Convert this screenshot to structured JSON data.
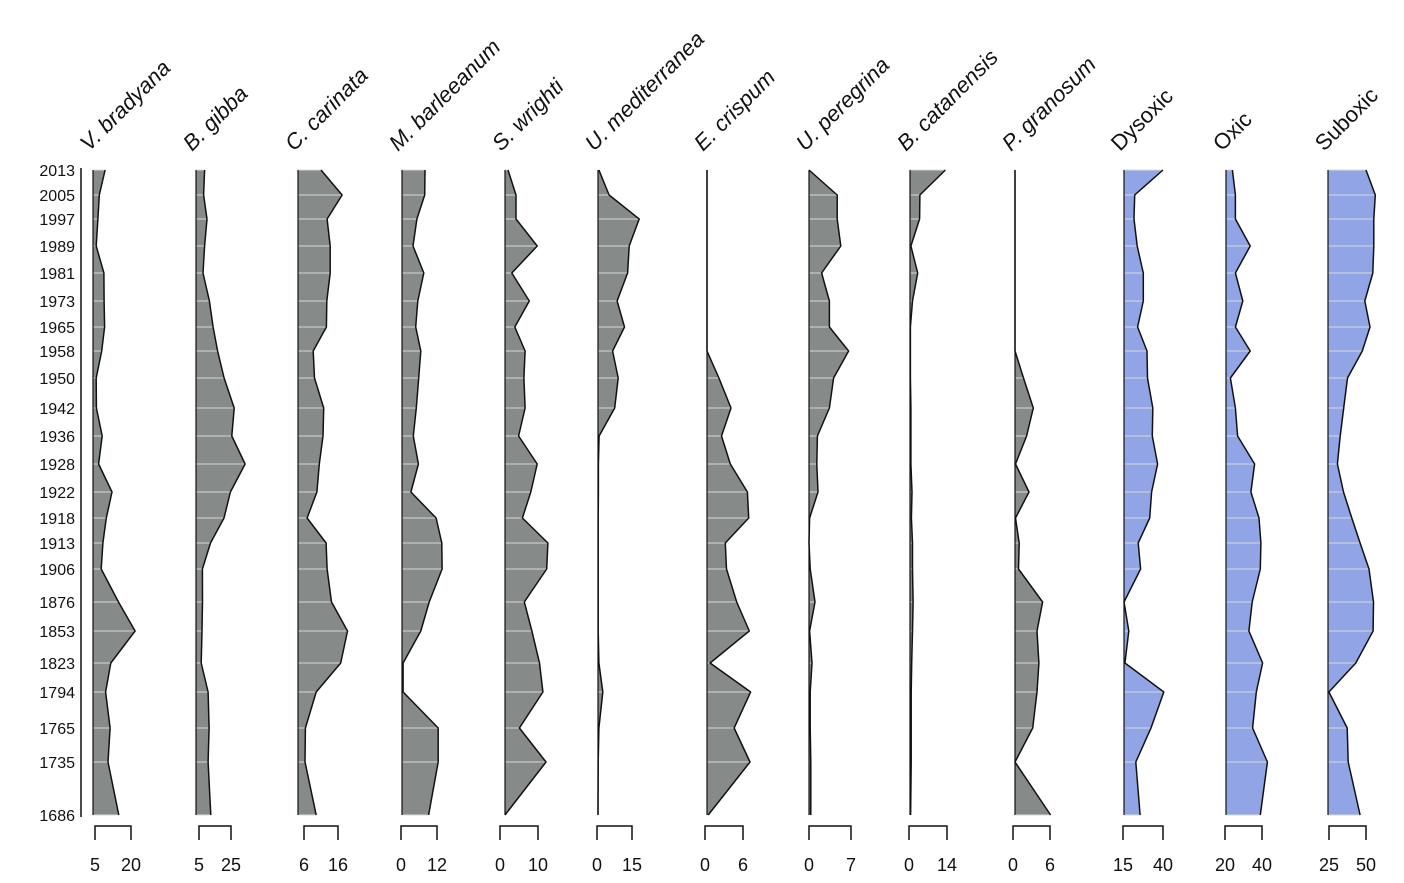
{
  "chart_data": {
    "type": "area",
    "years": [
      "2013",
      "2005",
      "1997",
      "1989",
      "1981",
      "1973",
      "1965",
      "1958",
      "1950",
      "1942",
      "1936",
      "1928",
      "1922",
      "1918",
      "1913",
      "1906",
      "1876",
      "1853",
      "1823",
      "1794",
      "1765",
      "1735",
      "1686"
    ],
    "colors": {
      "species": "#868a88",
      "oxygen": "#91a5e6"
    },
    "panels": [
      {
        "name": "V. bradyana",
        "italic": true,
        "kind": "species",
        "range": [
          5,
          20
        ],
        "ticks": [
          "5",
          "20"
        ],
        "values": [
          9.2,
          6.8,
          6.2,
          5.5,
          8.7,
          8.8,
          9.0,
          7.8,
          5.5,
          5.6,
          8.0,
          6.5,
          12.1,
          9.7,
          8.3,
          7.6,
          14.8,
          21.7,
          11.6,
          9.4,
          11.3,
          10.4,
          14.9
        ]
      },
      {
        "name": "B. gibba",
        "italic": true,
        "kind": "species",
        "range": [
          5,
          25
        ],
        "ticks": [
          "5",
          "25"
        ],
        "values": [
          8.5,
          7.9,
          10.0,
          8.5,
          7.5,
          11.5,
          13.8,
          16.6,
          20.7,
          27.0,
          25.5,
          33.8,
          24.6,
          20.6,
          12.2,
          7.1,
          7.2,
          6.9,
          6.4,
          10.7,
          11.3,
          10.7,
          12.4
        ]
      },
      {
        "name": "C. carinata",
        "italic": true,
        "kind": "species",
        "range": [
          6,
          16
        ],
        "ticks": [
          "6",
          "16"
        ],
        "values": [
          11.0,
          17.2,
          12.8,
          13.7,
          13.7,
          12.7,
          12.6,
          8.7,
          9.1,
          11.8,
          11.6,
          10.5,
          9.8,
          6.9,
          12.5,
          12.8,
          14.1,
          18.8,
          16.8,
          9.6,
          6.4,
          6.3,
          9.6
        ]
      },
      {
        "name": "M. barleeanum",
        "italic": true,
        "kind": "species",
        "range": [
          0,
          12
        ],
        "ticks": [
          "0",
          "12"
        ],
        "values": [
          8.0,
          7.9,
          5.3,
          4.0,
          7.6,
          5.6,
          4.9,
          6.6,
          5.9,
          5.1,
          4.1,
          5.8,
          3.3,
          11.7,
          13.6,
          13.7,
          9.4,
          6.6,
          0.7,
          0.7,
          12.4,
          12.4,
          9.2
        ]
      },
      {
        "name": "S. wrighti",
        "italic": true,
        "kind": "species",
        "range": [
          0,
          10
        ],
        "ticks": [
          "0",
          "10"
        ],
        "values": [
          2.1,
          4.2,
          4.2,
          9.8,
          3.1,
          7.7,
          3.9,
          6.6,
          6.3,
          6.6,
          4.9,
          9.8,
          8.1,
          5.9,
          12.6,
          12.3,
          6.4,
          8.4,
          10.4,
          11.3,
          5.1,
          12.1,
          1.0
        ]
      },
      {
        "name": "U. mediterranea",
        "italic": true,
        "kind": "species",
        "range": [
          0,
          15
        ],
        "ticks": [
          "0",
          "15"
        ],
        "values": [
          0.8,
          5.2,
          18.1,
          13.8,
          13.1,
          8.6,
          11.8,
          6.7,
          9.1,
          7.6,
          0.9,
          0.6,
          0.6,
          0.5,
          0.5,
          0.5,
          0.5,
          0.5,
          0.8,
          2.5,
          0.8,
          0.5,
          0.4
        ]
      },
      {
        "name": "E. crispum",
        "italic": true,
        "kind": "species",
        "range": [
          0,
          6
        ],
        "ticks": [
          "0",
          "6"
        ],
        "values": [
          0.2,
          0.2,
          0.2,
          0.2,
          0.2,
          0.2,
          0.2,
          0.2,
          2.2,
          4.1,
          2.6,
          4.0,
          6.7,
          6.9,
          3.2,
          3.4,
          5.0,
          7.0,
          0.8,
          7.2,
          4.6,
          7.1,
          0.5
        ]
      },
      {
        "name": "U. peregrina",
        "italic": true,
        "kind": "species",
        "range": [
          0,
          7
        ],
        "ticks": [
          "0",
          "7"
        ],
        "values": [
          0.0,
          4.7,
          4.7,
          5.3,
          2.1,
          3.4,
          3.4,
          6.6,
          4.1,
          3.4,
          1.4,
          1.3,
          1.5,
          0.1,
          0.0,
          0.2,
          1.0,
          0.1,
          0.5,
          0.2,
          0.2,
          0.3,
          0.3
        ]
      },
      {
        "name": "B. catanensis",
        "italic": true,
        "kind": "species",
        "range": [
          0,
          14
        ],
        "ticks": [
          "0",
          "14"
        ],
        "values": [
          13.4,
          4.0,
          3.9,
          0.7,
          3.2,
          1.3,
          0.5,
          0.5,
          0.5,
          0.7,
          0.7,
          0.7,
          1.1,
          0.9,
          1.3,
          1.3,
          1.5,
          1.3,
          1.0,
          0.8,
          0.8,
          0.8,
          0.6
        ]
      },
      {
        "name": "P. granosum",
        "italic": true,
        "kind": "species",
        "range": [
          0,
          6
        ],
        "ticks": [
          "0",
          "6"
        ],
        "values": [
          0.0,
          0.0,
          0.0,
          0.0,
          0.0,
          0.2,
          0.3,
          0.2,
          1.7,
          3.3,
          2.2,
          0.4,
          2.6,
          0.4,
          1.0,
          0.9,
          4.8,
          3.9,
          4.2,
          3.9,
          3.2,
          0.3,
          6.1
        ]
      },
      {
        "name": "Dysoxic",
        "italic": false,
        "kind": "oxygen",
        "range": [
          15,
          40
        ],
        "ticks": [
          "15",
          "40"
        ],
        "values": [
          40.0,
          22.3,
          21.9,
          23.9,
          27.7,
          27.7,
          24.1,
          30.0,
          30.3,
          33.6,
          33.3,
          36.6,
          32.9,
          31.7,
          24.5,
          26.0,
          15.0,
          18.6,
          16.2,
          40.5,
          32.5,
          23.0,
          25.7
        ]
      },
      {
        "name": "Oxic",
        "italic": false,
        "kind": "oxygen",
        "range": [
          20,
          40
        ],
        "ticks": [
          "20",
          "40"
        ],
        "values": [
          24.0,
          25.6,
          25.6,
          33.6,
          25.6,
          29.6,
          25.6,
          33.6,
          22.9,
          25.6,
          26.8,
          36.0,
          34.0,
          38.4,
          39.4,
          39.1,
          34.7,
          32.9,
          40.3,
          36.9,
          34.9,
          42.9,
          39.1
        ]
      },
      {
        "name": "Suboxic",
        "italic": false,
        "kind": "oxygen",
        "range": [
          25,
          50
        ],
        "ticks": [
          "25",
          "50"
        ],
        "values": [
          50.0,
          56.3,
          55.3,
          55.3,
          54.6,
          49.2,
          52.7,
          47.5,
          37.5,
          34.9,
          32.6,
          30.7,
          34.8,
          40.4,
          46.0,
          52.0,
          55.1,
          54.8,
          43.1,
          24.9,
          37.3,
          38.0,
          46.0
        ]
      }
    ]
  }
}
